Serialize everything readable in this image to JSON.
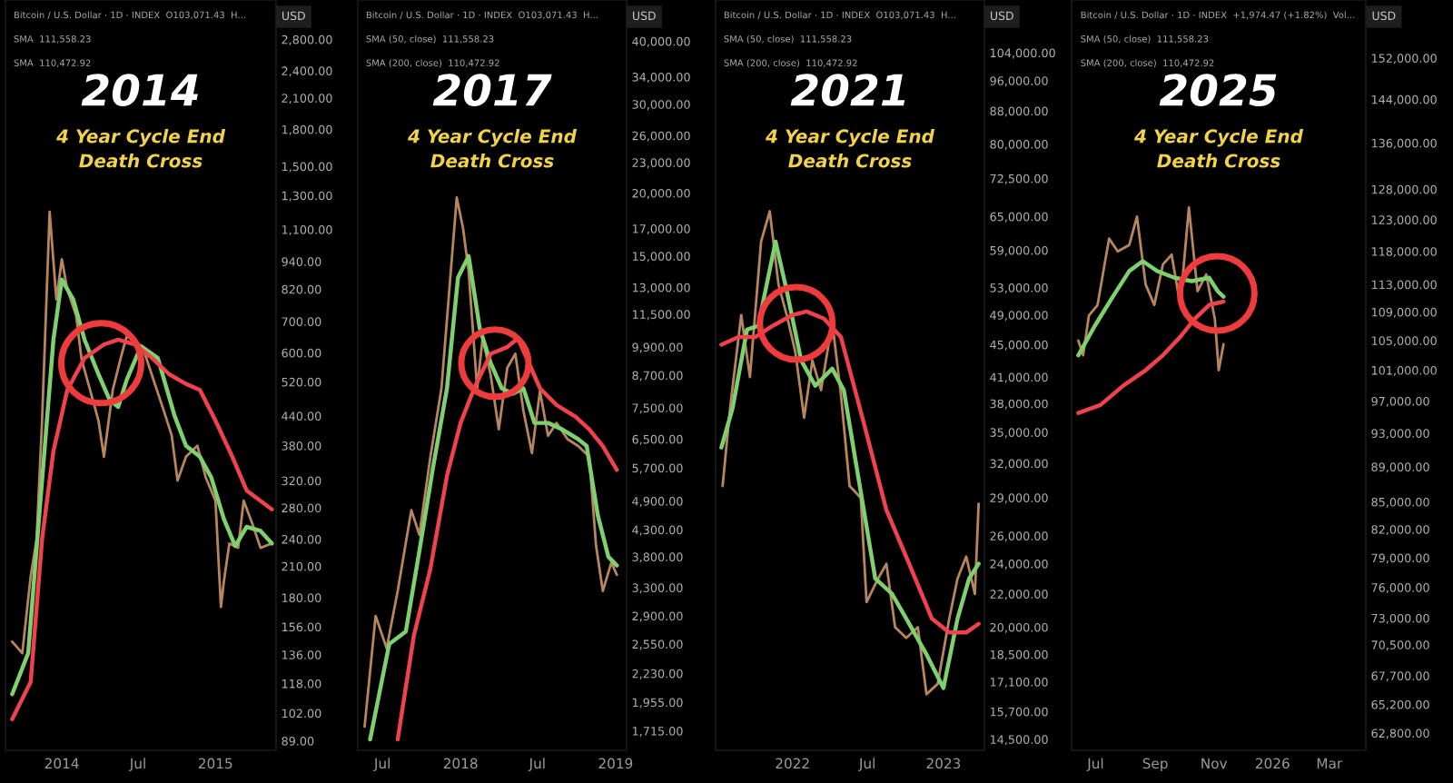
{
  "chart_data": [
    {
      "type": "line",
      "title": "2014",
      "subtitle": "4 Year Cycle End\nDeath Cross",
      "log": "y",
      "annotations": [
        "Bitcoin / U.S. Dollar · 1D · INDEX  O103,071.43  H...",
        "SMA  111,558.23",
        "SMA  110,472.92",
        "USD"
      ],
      "xlim": [
        "2013-08-20",
        "2015-05-25"
      ],
      "ylim": [
        85,
        3400
      ],
      "xticks": [
        {
          "value": "2014-01-01",
          "label": "2014"
        },
        {
          "value": "2014-07-01",
          "label": "Jul"
        },
        {
          "value": "2015-01-01",
          "label": "2015"
        }
      ],
      "yticks": [
        {
          "value": 2800,
          "label": "2,800.00"
        },
        {
          "value": 2400,
          "label": "2,400.00"
        },
        {
          "value": 2100,
          "label": "2,100.00"
        },
        {
          "value": 1800,
          "label": "1,800.00"
        },
        {
          "value": 1500,
          "label": "1,500.00"
        },
        {
          "value": 1300,
          "label": "1,300.00"
        },
        {
          "value": 1100,
          "label": "1,100.00"
        },
        {
          "value": 940,
          "label": "940.00"
        },
        {
          "value": 820,
          "label": "820.00"
        },
        {
          "value": 700,
          "label": "700.00"
        },
        {
          "value": 600,
          "label": "600.00"
        },
        {
          "value": 520,
          "label": "520.00"
        },
        {
          "value": 440,
          "label": "440.00"
        },
        {
          "value": 380,
          "label": "380.00"
        },
        {
          "value": 320,
          "label": "320.00"
        },
        {
          "value": 280,
          "label": "280.00"
        },
        {
          "value": 240,
          "label": "240.00"
        },
        {
          "value": 210,
          "label": "210.00"
        },
        {
          "value": 180,
          "label": "180.00"
        },
        {
          "value": 156,
          "label": "156.00"
        },
        {
          "value": 136,
          "label": "136.00"
        },
        {
          "value": 118,
          "label": "118.00"
        },
        {
          "value": 102,
          "label": "102.00"
        },
        {
          "value": 89,
          "label": "89.00"
        }
      ],
      "series": [
        {
          "color": "#b8865e",
          "x": [
            "2013-09-05",
            "2013-09-29",
            "2013-10-19",
            "2013-11-02",
            "2013-11-15",
            "2013-12-03",
            "2013-12-19",
            "2014-01-01",
            "2014-01-14",
            "2014-02-04",
            "2014-02-17",
            "2014-03-09",
            "2014-03-29",
            "2014-04-11",
            "2014-05-02",
            "2014-05-22",
            "2014-06-04",
            "2014-06-24",
            "2014-07-14",
            "2014-08-10",
            "2014-08-30",
            "2014-09-19",
            "2014-10-03",
            "2014-10-23",
            "2014-11-19",
            "2014-12-09",
            "2015-01-01",
            "2015-01-14",
            "2015-01-21",
            "2015-02-03",
            "2015-02-24",
            "2015-03-09",
            "2015-03-29",
            "2015-04-18",
            "2015-05-15"
          ],
          "values": [
            145,
            137,
            200,
            240,
            430,
            1200,
            780,
            950,
            820,
            720,
            580,
            500,
            430,
            360,
            500,
            590,
            650,
            640,
            610,
            515,
            455,
            400,
            320,
            360,
            380,
            325,
            290,
            172,
            195,
            235,
            230,
            290,
            260,
            230,
            235
          ]
        },
        {
          "color": "#7fd06e",
          "x": [
            "2013-09-05",
            "2013-10-13",
            "2013-11-15",
            "2013-12-12",
            "2014-01-01",
            "2014-01-28",
            "2014-02-24",
            "2014-03-29",
            "2014-04-25",
            "2014-05-15",
            "2014-06-04",
            "2014-07-08",
            "2014-08-17",
            "2014-09-26",
            "2014-10-23",
            "2014-11-25",
            "2014-12-22",
            "2015-01-21",
            "2015-02-17",
            "2015-03-16",
            "2015-04-18",
            "2015-05-15"
          ],
          "values": [
            112,
            137,
            320,
            640,
            860,
            780,
            640,
            540,
            475,
            460,
            525,
            620,
            585,
            440,
            380,
            360,
            325,
            265,
            232,
            255,
            250,
            235
          ]
        },
        {
          "color": "#f0424c",
          "x": [
            "2013-09-05",
            "2013-10-19",
            "2013-11-15",
            "2013-12-12",
            "2014-01-14",
            "2014-02-24",
            "2014-04-11",
            "2014-05-15",
            "2014-06-24",
            "2014-08-03",
            "2014-09-13",
            "2014-10-23",
            "2014-11-25",
            "2015-01-01",
            "2015-02-10",
            "2015-03-16",
            "2015-05-15"
          ],
          "values": [
            99,
            119,
            240,
            370,
            500,
            585,
            625,
            640,
            625,
            585,
            540,
            515,
            500,
            430,
            360,
            305,
            278
          ]
        }
      ]
    },
    {
      "type": "line",
      "title": "2017",
      "subtitle": "4 Year Cycle End\nDeath Cross",
      "log": "y",
      "annotations": [
        "Bitcoin / U.S. Dollar · 1D · INDEX  O103,071.43  H...",
        "SMA (50, close)  111,558.23",
        "SMA (200, close)  110,472.92",
        "USD"
      ],
      "xlim": [
        "2017-05-04",
        "2019-01-27"
      ],
      "ylim": [
        1570,
        48300
      ],
      "xticks": [
        {
          "value": "2017-07-01",
          "label": "Jul"
        },
        {
          "value": "2018-01-01",
          "label": "2018"
        },
        {
          "value": "2018-07-01",
          "label": "Jul"
        },
        {
          "value": "2019-01-01",
          "label": "2019"
        }
      ],
      "yticks": [
        {
          "value": 40000,
          "label": "40,000.00"
        },
        {
          "value": 34000,
          "label": "34,000.00"
        },
        {
          "value": 30000,
          "label": "30,000.00"
        },
        {
          "value": 26000,
          "label": "26,000.00"
        },
        {
          "value": 23000,
          "label": "23,000.00"
        },
        {
          "value": 20000,
          "label": "20,000.00"
        },
        {
          "value": 17000,
          "label": "17,000.00"
        },
        {
          "value": 15000,
          "label": "15,000.00"
        },
        {
          "value": 13000,
          "label": "13,000.00"
        },
        {
          "value": 11500,
          "label": "11,500.00"
        },
        {
          "value": 9900,
          "label": "9,900.00"
        },
        {
          "value": 8700,
          "label": "8,700.00"
        },
        {
          "value": 7500,
          "label": "7,500.00"
        },
        {
          "value": 6500,
          "label": "6,500.00"
        },
        {
          "value": 5700,
          "label": "5,700.00"
        },
        {
          "value": 4900,
          "label": "4,900.00"
        },
        {
          "value": 4300,
          "label": "4,300.00"
        },
        {
          "value": 3800,
          "label": "3,800.00"
        },
        {
          "value": 3300,
          "label": "3,300.00"
        },
        {
          "value": 2900,
          "label": "2,900.00"
        },
        {
          "value": 2550,
          "label": "2,550.00"
        },
        {
          "value": 2230,
          "label": "2,230.00"
        },
        {
          "value": 1955,
          "label": "1,955.00"
        },
        {
          "value": 1715,
          "label": "1,715.00"
        }
      ],
      "series": [
        {
          "color": "#b8865e",
          "x": [
            "2017-05-20",
            "2017-06-15",
            "2017-07-11",
            "2017-08-06",
            "2017-09-07",
            "2017-09-26",
            "2017-10-22",
            "2017-11-17",
            "2017-12-06",
            "2017-12-23",
            "2018-01-07",
            "2018-01-20",
            "2018-02-09",
            "2018-02-22",
            "2018-03-13",
            "2018-04-01",
            "2018-04-21",
            "2018-05-10",
            "2018-05-29",
            "2018-06-18",
            "2018-07-07",
            "2018-07-26",
            "2018-08-15",
            "2018-09-10",
            "2018-10-05",
            "2018-10-31",
            "2018-11-16",
            "2018-12-02",
            "2018-12-22",
            "2019-01-04"
          ],
          "values": [
            1750,
            2900,
            2500,
            3250,
            4700,
            4200,
            6000,
            8200,
            13000,
            19600,
            17000,
            14000,
            8200,
            10300,
            8700,
            6800,
            9000,
            9600,
            7400,
            6100,
            8100,
            6600,
            7000,
            6500,
            6300,
            6000,
            4000,
            3250,
            3700,
            3500
          ]
        },
        {
          "color": "#7fd06e",
          "x": [
            "2017-06-02",
            "2017-07-17",
            "2017-08-25",
            "2017-09-26",
            "2017-10-28",
            "2017-11-30",
            "2017-12-26",
            "2018-01-20",
            "2018-02-15",
            "2018-03-13",
            "2018-04-08",
            "2018-05-04",
            "2018-05-29",
            "2018-06-24",
            "2018-07-26",
            "2018-08-28",
            "2018-10-05",
            "2018-10-25",
            "2018-11-20",
            "2018-12-15",
            "2019-01-04"
          ],
          "values": [
            1650,
            2550,
            2700,
            3900,
            5700,
            8200,
            13600,
            15000,
            10800,
            9200,
            8200,
            8000,
            8200,
            7000,
            7000,
            6800,
            6500,
            6300,
            4600,
            3800,
            3650
          ]
        },
        {
          "color": "#f0424c",
          "x": [
            "2017-08-06",
            "2017-09-13",
            "2017-10-22",
            "2017-11-30",
            "2018-01-01",
            "2018-02-02",
            "2018-03-13",
            "2018-04-21",
            "2018-05-16",
            "2018-06-11",
            "2018-07-07",
            "2018-08-15",
            "2018-09-29",
            "2018-10-31",
            "2018-12-02",
            "2019-01-04"
          ],
          "values": [
            1650,
            2650,
            3600,
            5500,
            7000,
            8200,
            9600,
            9900,
            10300,
            9200,
            8200,
            7600,
            7200,
            6800,
            6300,
            5650
          ]
        }
      ]
    },
    {
      "type": "line",
      "title": "2021",
      "subtitle": "4 Year Cycle End\nDeath Cross",
      "log": "y",
      "annotations": [
        "Bitcoin / U.S. Dollar · 1D · INDEX  O103,071.43  H...",
        "SMA (50, close)  111,558.23",
        "SMA (200, close)  110,472.92",
        "USD"
      ],
      "xlim": [
        "2021-06-29",
        "2023-04-10"
      ],
      "ylim": [
        14050,
        121000
      ],
      "xticks": [
        {
          "value": "2022-01-01",
          "label": "2022"
        },
        {
          "value": "2022-07-01",
          "label": "Jul"
        },
        {
          "value": "2023-01-01",
          "label": "2023"
        }
      ],
      "yticks": [
        {
          "value": 104000,
          "label": "104,000.00"
        },
        {
          "value": 96000,
          "label": "96,000.00"
        },
        {
          "value": 88000,
          "label": "88,000.00"
        },
        {
          "value": 80000,
          "label": "80,000.00"
        },
        {
          "value": 72500,
          "label": "72,500.00"
        },
        {
          "value": 65000,
          "label": "65,000.00"
        },
        {
          "value": 59000,
          "label": "59,000.00"
        },
        {
          "value": 53000,
          "label": "53,000.00"
        },
        {
          "value": 49000,
          "label": "49,000.00"
        },
        {
          "value": 45000,
          "label": "45,000.00"
        },
        {
          "value": 41000,
          "label": "41,000.00"
        },
        {
          "value": 38000,
          "label": "38,000.00"
        },
        {
          "value": 35000,
          "label": "35,000.00"
        },
        {
          "value": 32000,
          "label": "32,000.00"
        },
        {
          "value": 29000,
          "label": "29,000.00"
        },
        {
          "value": 26000,
          "label": "26,000.00"
        },
        {
          "value": 24000,
          "label": "24,000.00"
        },
        {
          "value": 22000,
          "label": "22,000.00"
        },
        {
          "value": 20000,
          "label": "20,000.00"
        },
        {
          "value": 18500,
          "label": "18,500.00"
        },
        {
          "value": 17100,
          "label": "17,100.00"
        },
        {
          "value": 15700,
          "label": "15,700.00"
        },
        {
          "value": 14500,
          "label": "14,500.00"
        }
      ],
      "series": [
        {
          "color": "#b8865e",
          "x": [
            "2021-07-16",
            "2021-08-03",
            "2021-08-30",
            "2021-09-20",
            "2021-10-17",
            "2021-11-07",
            "2021-11-28",
            "2021-12-18",
            "2022-01-08",
            "2022-01-29",
            "2022-02-18",
            "2022-03-11",
            "2022-04-07",
            "2022-04-28",
            "2022-05-19",
            "2022-06-15",
            "2022-06-29",
            "2022-07-27",
            "2022-08-16",
            "2022-09-06",
            "2022-10-03",
            "2022-10-31",
            "2022-11-21",
            "2022-12-18",
            "2023-01-15",
            "2023-02-04",
            "2023-02-25",
            "2023-03-18",
            "2023-03-27"
          ],
          "values": [
            30000,
            37500,
            49000,
            41000,
            60500,
            66000,
            53500,
            49000,
            44000,
            36500,
            43000,
            39500,
            48000,
            39000,
            30000,
            29000,
            21500,
            23000,
            24000,
            20000,
            19400,
            20000,
            16500,
            17000,
            20500,
            23000,
            24500,
            22000,
            28500
          ]
        },
        {
          "color": "#7fd06e",
          "x": [
            "2021-07-13",
            "2021-08-09",
            "2021-09-13",
            "2021-10-10",
            "2021-11-21",
            "2021-12-18",
            "2022-01-22",
            "2022-02-25",
            "2022-04-07",
            "2022-05-05",
            "2022-06-08",
            "2022-07-20",
            "2022-08-30",
            "2022-10-10",
            "2022-11-21",
            "2023-01-01",
            "2023-02-04",
            "2023-03-04",
            "2023-03-27"
          ],
          "values": [
            33500,
            37500,
            47000,
            47500,
            60500,
            52500,
            43000,
            40000,
            42000,
            39500,
            31000,
            23000,
            22000,
            20200,
            18500,
            16800,
            20500,
            23000,
            24000
          ]
        },
        {
          "color": "#f0424c",
          "x": [
            "2021-07-13",
            "2021-08-23",
            "2021-10-03",
            "2021-11-14",
            "2022-01-01",
            "2022-02-04",
            "2022-03-18",
            "2022-04-28",
            "2022-06-22",
            "2022-08-16",
            "2022-10-10",
            "2022-12-04",
            "2023-01-15",
            "2023-02-25",
            "2023-03-27"
          ],
          "values": [
            45000,
            46000,
            46000,
            47500,
            49000,
            49500,
            48500,
            46000,
            36000,
            28000,
            24000,
            20500,
            19700,
            19700,
            20200
          ]
        }
      ]
    },
    {
      "type": "line",
      "title": "2025",
      "subtitle": "4 Year Cycle End\nDeath Cross",
      "log": "y",
      "annotations": [
        "Bitcoin / U.S. Dollar · 1D · INDEX  +1,974.47 (+1.82%)  Vol...",
        "SMA (50, close)  111,558.23",
        "SMA (200, close)  110,472.92",
        "USD"
      ],
      "xlim": [
        "2025-06-06",
        "2026-04-08"
      ],
      "ylim": [
        61400,
        164000
      ],
      "xticks": [
        {
          "value": "2025-07-01",
          "label": "Jul"
        },
        {
          "value": "2025-09-01",
          "label": "Sep"
        },
        {
          "value": "2025-11-01",
          "label": "Nov"
        },
        {
          "value": "2026-01-01",
          "label": "2026"
        },
        {
          "value": "2026-03-01",
          "label": "Mar"
        }
      ],
      "yticks": [
        {
          "value": 152000,
          "label": "152,000.00"
        },
        {
          "value": 144000,
          "label": "144,000.00"
        },
        {
          "value": 136000,
          "label": "136,000.00"
        },
        {
          "value": 128000,
          "label": "128,000.00"
        },
        {
          "value": 123000,
          "label": "123,000.00"
        },
        {
          "value": 118000,
          "label": "118,000.00"
        },
        {
          "value": 113000,
          "label": "113,000.00"
        },
        {
          "value": 109000,
          "label": "109,000.00"
        },
        {
          "value": 105000,
          "label": "105,000.00"
        },
        {
          "value": 101000,
          "label": "101,000.00"
        },
        {
          "value": 97000,
          "label": "97,000.00"
        },
        {
          "value": 93000,
          "label": "93,000.00"
        },
        {
          "value": 89000,
          "label": "89,000.00"
        },
        {
          "value": 85000,
          "label": "85,000.00"
        },
        {
          "value": 82000,
          "label": "82,000.00"
        },
        {
          "value": 79000,
          "label": "79,000.00"
        },
        {
          "value": 76000,
          "label": "76,000.00"
        },
        {
          "value": 73000,
          "label": "73,000.00"
        },
        {
          "value": 70500,
          "label": "70,500.00"
        },
        {
          "value": 67700,
          "label": "67,700.00"
        },
        {
          "value": 65200,
          "label": "65,200.00"
        },
        {
          "value": 62800,
          "label": "62,800.00"
        }
      ],
      "series": [
        {
          "color": "#b8865e",
          "x": [
            "2025-06-13",
            "2025-06-18",
            "2025-06-24",
            "2025-07-03",
            "2025-07-15",
            "2025-07-24",
            "2025-08-05",
            "2025-08-13",
            "2025-08-22",
            "2025-08-31",
            "2025-09-09",
            "2025-09-18",
            "2025-09-27",
            "2025-10-06",
            "2025-10-10",
            "2025-10-15",
            "2025-10-24",
            "2025-11-02",
            "2025-11-06",
            "2025-11-11"
          ],
          "values": [
            105000,
            103000,
            108500,
            110000,
            120000,
            118000,
            119000,
            123500,
            113000,
            110000,
            116000,
            117500,
            110000,
            125000,
            119000,
            112000,
            114500,
            108000,
            101000,
            104500
          ]
        },
        {
          "color": "#7fd06e",
          "x": [
            "2025-06-13",
            "2025-06-30",
            "2025-07-18",
            "2025-08-05",
            "2025-08-19",
            "2025-09-03",
            "2025-09-21",
            "2025-10-09",
            "2025-10-27",
            "2025-11-05",
            "2025-11-11"
          ],
          "values": [
            103000,
            107000,
            111000,
            115000,
            116500,
            115000,
            114000,
            113500,
            114000,
            112000,
            111200
          ]
        },
        {
          "color": "#f0424c",
          "x": [
            "2025-06-13",
            "2025-07-06",
            "2025-07-30",
            "2025-08-22",
            "2025-09-09",
            "2025-09-27",
            "2025-10-12",
            "2025-10-27",
            "2025-11-11"
          ],
          "values": [
            95500,
            96500,
            99000,
            101000,
            103000,
            105500,
            108000,
            110000,
            110500
          ]
        }
      ]
    }
  ]
}
